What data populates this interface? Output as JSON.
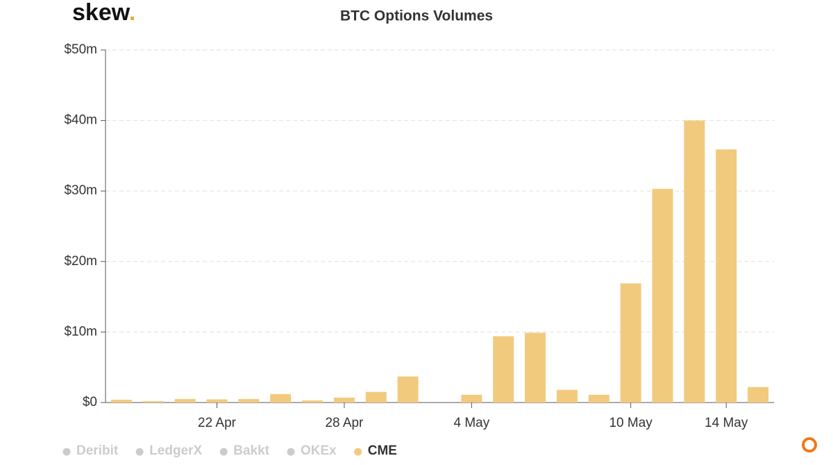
{
  "logo": {
    "word": "skew",
    "dot": "."
  },
  "chart_data": {
    "type": "bar",
    "title": "BTC Options Volumes",
    "categories": [
      null,
      null,
      null,
      "22 Apr",
      null,
      null,
      null,
      "28 Apr",
      null,
      null,
      null,
      "4 May",
      null,
      null,
      null,
      null,
      "10 May",
      null,
      null,
      "14 May",
      null
    ],
    "series": [
      {
        "name": "CME",
        "color": "#f2ca7e",
        "values": [
          0.4,
          0.2,
          0.5,
          0.45,
          0.5,
          1.2,
          0.3,
          0.7,
          1.5,
          3.7,
          0,
          1.1,
          9.4,
          9.9,
          1.8,
          1.1,
          16.9,
          30.3,
          40.0,
          35.9,
          2.2
        ]
      }
    ],
    "legend": [
      {
        "name": "Deribit",
        "visible": false
      },
      {
        "name": "LedgerX",
        "visible": false
      },
      {
        "name": "Bakkt",
        "visible": false
      },
      {
        "name": "OKEx",
        "visible": false
      },
      {
        "name": "CME",
        "visible": true
      }
    ],
    "ylim": [
      0,
      50
    ],
    "yticks": [
      {
        "value": 0,
        "label": "$0"
      },
      {
        "value": 10,
        "label": "$10m"
      },
      {
        "value": 20,
        "label": "$20m"
      },
      {
        "value": 30,
        "label": "$30m"
      },
      {
        "value": 40,
        "label": "$40m"
      },
      {
        "value": 50,
        "label": "$50m"
      }
    ],
    "grid": true
  }
}
